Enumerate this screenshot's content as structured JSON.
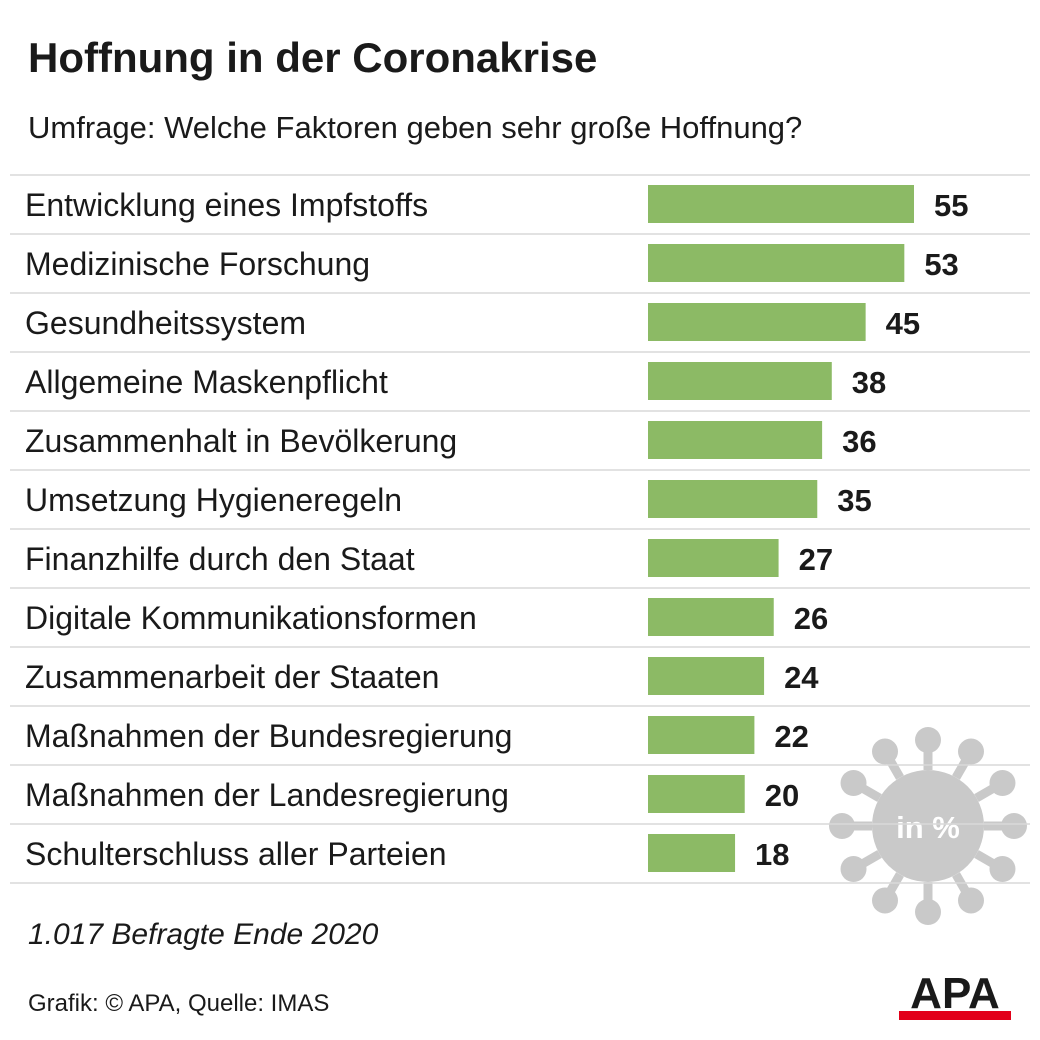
{
  "title": "Hoffnung in der Coronakrise",
  "subtitle": "Umfrage: Welche Faktoren geben sehr große Hoffnung?",
  "unit_badge": "in %",
  "note": "1.017 Befragte Ende 2020",
  "source": "Grafik: © APA, Quelle: IMAS",
  "logo_text": "APA",
  "colors": {
    "bar": "#8cba65",
    "text": "#1a1a1a",
    "rule": "#d9d9d9",
    "virus": "#c9c9c9",
    "logo_red": "#e2001a"
  },
  "chart_data": {
    "type": "bar",
    "orientation": "horizontal",
    "categories": [
      "Entwicklung eines Impfstoffs",
      "Medizinische Forschung",
      "Gesundheitssystem",
      "Allgemeine Maskenpflicht",
      "Zusammenhalt in Bevölkerung",
      "Umsetzung Hygieneregeln",
      "Finanzhilfe durch den Staat",
      "Digitale Kommunikationsformen",
      "Zusammenarbeit der Staaten",
      "Maßnahmen der Bundesregierung",
      "Maßnahmen der Landesregierung",
      "Schulterschluss aller Parteien"
    ],
    "values": [
      55,
      53,
      45,
      38,
      36,
      35,
      27,
      26,
      24,
      22,
      20,
      18
    ],
    "xlim": [
      0,
      55
    ],
    "grid": false,
    "legend": "none"
  }
}
